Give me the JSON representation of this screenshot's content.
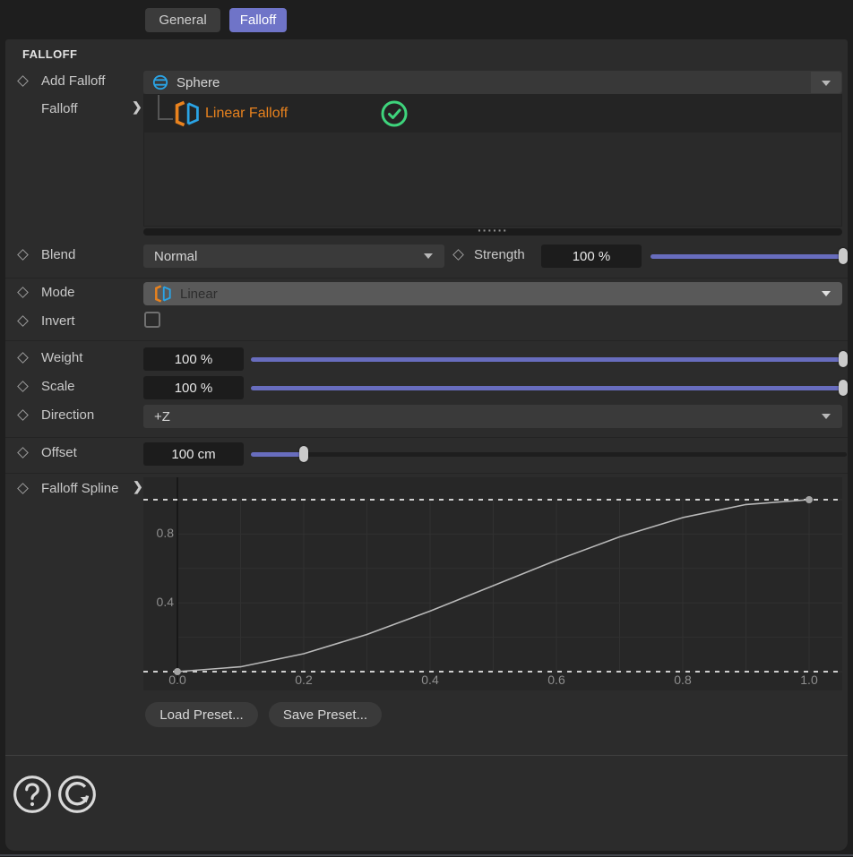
{
  "tabs": {
    "general": "General",
    "falloff": "Falloff"
  },
  "header": {
    "section_title": "FALLOFF"
  },
  "left_labels": {
    "add_falloff": "Add Falloff",
    "falloff": "Falloff",
    "blend": "Blend",
    "strength": "Strength",
    "mode": "Mode",
    "invert": "Invert",
    "weight": "Weight",
    "scale": "Scale",
    "direction": "Direction",
    "offset": "Offset",
    "falloff_spline": "Falloff Spline"
  },
  "object_selector": {
    "value": "Sphere",
    "icon": "sphere-icon"
  },
  "tree": {
    "item_label": "Linear Falloff",
    "item_icon": "linear-falloff-icon",
    "status_icon": "check-circle-icon",
    "splitter_dots": "······"
  },
  "fields": {
    "blend_value": "Normal",
    "strength_value": "100 %",
    "mode_value": "Linear",
    "invert_checked": false,
    "weight_value": "100 %",
    "scale_value": "100 %",
    "direction_value": "+Z",
    "offset_value": "100 cm"
  },
  "sliders": {
    "strength_pct": 100,
    "weight_pct": 100,
    "scale_pct": 100,
    "offset_pct": 9.5
  },
  "buttons": {
    "load_preset": "Load Preset...",
    "save_preset": "Save Preset..."
  },
  "chart_data": {
    "type": "line",
    "title": "Falloff Spline",
    "curve": "smoothstep ease-in-out from (0,0) to (1,1)",
    "points": [
      {
        "x": 0,
        "y": 0
      },
      {
        "x": 1,
        "y": 1
      }
    ],
    "sampled": [
      [
        0,
        0
      ],
      [
        0.1,
        0.028
      ],
      [
        0.2,
        0.104
      ],
      [
        0.3,
        0.216
      ],
      [
        0.4,
        0.352
      ],
      [
        0.5,
        0.5
      ],
      [
        0.6,
        0.648
      ],
      [
        0.7,
        0.784
      ],
      [
        0.8,
        0.896
      ],
      [
        0.9,
        0.972
      ],
      [
        1,
        1
      ]
    ],
    "x_ticks": [
      "0.0",
      "0.2",
      "0.4",
      "0.6",
      "0.8",
      "1.0"
    ],
    "y_ticks": [
      {
        "label": "0.8",
        "value": 0.8
      },
      {
        "label": "0.4",
        "value": 0.4
      }
    ],
    "xlim": [
      0,
      1
    ],
    "ylim": [
      0,
      1
    ],
    "x_grid_step": 0.1,
    "y_grid_step": 0.2,
    "grid": true,
    "dashed_bounds_y": [
      0,
      1
    ],
    "legend": "none"
  },
  "colors": {
    "accent_purple": "#6f74c8",
    "slider_purple": "#686dbe",
    "tree_item_orange": "#e8821e",
    "check_green": "#3ed47c",
    "sphere_blue": "#2aa4e6",
    "panel_bg": "#2c2c2c",
    "graph_bg": "#272727"
  },
  "footer": {
    "icons": [
      "help-icon",
      "reset-undo-icon"
    ]
  }
}
